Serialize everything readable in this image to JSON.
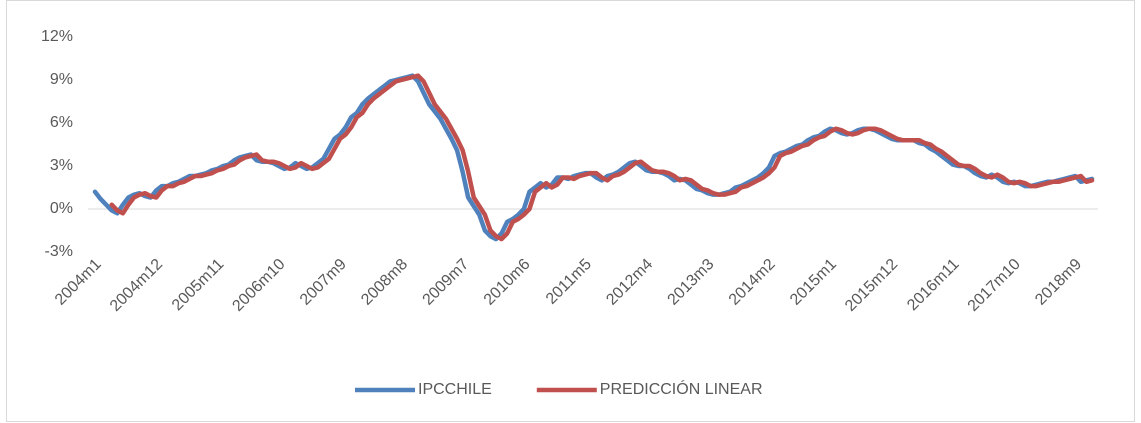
{
  "chart_data": {
    "type": "line",
    "categories": [
      "2004m1",
      null,
      null,
      null,
      null,
      null,
      null,
      null,
      null,
      null,
      null,
      "2004m12",
      null,
      null,
      null,
      null,
      null,
      null,
      null,
      null,
      null,
      null,
      "2005m11",
      null,
      null,
      null,
      null,
      null,
      null,
      null,
      null,
      null,
      null,
      "2006m10",
      null,
      null,
      null,
      null,
      null,
      null,
      null,
      null,
      null,
      null,
      "2007m9",
      null,
      null,
      null,
      null,
      null,
      null,
      null,
      null,
      null,
      null,
      "2008m8",
      null,
      null,
      null,
      null,
      null,
      null,
      null,
      null,
      null,
      null,
      "2009m7",
      null,
      null,
      null,
      null,
      null,
      null,
      null,
      null,
      null,
      null,
      "2010m6",
      null,
      null,
      null,
      null,
      null,
      null,
      null,
      null,
      null,
      null,
      "2011m5",
      null,
      null,
      null,
      null,
      null,
      null,
      null,
      null,
      null,
      null,
      "2012m4",
      null,
      null,
      null,
      null,
      null,
      null,
      null,
      null,
      null,
      null,
      "2013m3",
      null,
      null,
      null,
      null,
      null,
      null,
      null,
      null,
      null,
      null,
      "2014m2",
      null,
      null,
      null,
      null,
      null,
      null,
      null,
      null,
      null,
      null,
      "2015m1",
      null,
      null,
      null,
      null,
      null,
      null,
      null,
      null,
      null,
      null,
      "2015m12",
      null,
      null,
      null,
      null,
      null,
      null,
      null,
      null,
      null,
      null,
      "2016m11",
      null,
      null,
      null,
      null,
      null,
      null,
      null,
      null,
      null,
      null,
      "2017m10",
      null,
      null,
      null,
      null,
      null,
      null,
      null,
      null,
      null,
      null,
      "2018m9",
      null,
      null,
      null
    ],
    "series": [
      {
        "name": "IPCCHILE",
        "color": "#4f81bd",
        "values": [
          1.2,
          0.7,
          0.3,
          -0.1,
          -0.3,
          0.3,
          0.8,
          1.0,
          1.1,
          0.9,
          0.8,
          1.3,
          1.6,
          1.6,
          1.8,
          1.9,
          2.1,
          2.3,
          2.3,
          2.4,
          2.5,
          2.7,
          2.8,
          3.0,
          3.1,
          3.4,
          3.6,
          3.7,
          3.8,
          3.4,
          3.3,
          3.3,
          3.2,
          3.0,
          2.8,
          2.9,
          3.2,
          3.0,
          2.8,
          2.9,
          3.2,
          3.5,
          4.2,
          4.9,
          5.2,
          5.7,
          6.4,
          6.7,
          7.3,
          7.7,
          8.0,
          8.3,
          8.6,
          8.9,
          9.0,
          9.1,
          9.2,
          9.3,
          8.9,
          8.1,
          7.3,
          6.8,
          6.3,
          5.6,
          4.9,
          4.1,
          2.6,
          0.8,
          0.2,
          -0.4,
          -1.5,
          -1.9,
          -2.1,
          -1.7,
          -0.9,
          -0.7,
          -0.4,
          0.0,
          1.2,
          1.5,
          1.8,
          1.5,
          1.7,
          2.2,
          2.2,
          2.1,
          2.3,
          2.4,
          2.5,
          2.5,
          2.2,
          2.0,
          2.3,
          2.4,
          2.6,
          2.9,
          3.2,
          3.3,
          3.0,
          2.7,
          2.6,
          2.6,
          2.5,
          2.3,
          2.0,
          2.1,
          2.0,
          1.7,
          1.4,
          1.3,
          1.1,
          1.0,
          1.0,
          1.1,
          1.2,
          1.5,
          1.6,
          1.8,
          2.0,
          2.2,
          2.5,
          2.9,
          3.7,
          3.9,
          4.0,
          4.2,
          4.4,
          4.5,
          4.8,
          5.0,
          5.1,
          5.4,
          5.6,
          5.5,
          5.3,
          5.2,
          5.3,
          5.5,
          5.6,
          5.6,
          5.5,
          5.3,
          5.1,
          4.9,
          4.8,
          4.8,
          4.8,
          4.8,
          4.6,
          4.5,
          4.2,
          4.0,
          3.7,
          3.4,
          3.1,
          3.0,
          3.0,
          2.8,
          2.5,
          2.3,
          2.2,
          2.4,
          2.2,
          1.9,
          1.8,
          1.9,
          1.8,
          1.6,
          1.6,
          1.7,
          1.8,
          1.9,
          1.9,
          2.0,
          2.1,
          2.2,
          2.3,
          1.9,
          2.0,
          2.1
        ]
      },
      {
        "name": "PREDICCIÓN LINEAR",
        "color": "#c0504d",
        "values": [
          null,
          null,
          null,
          0.3,
          -0.1,
          -0.3,
          0.3,
          0.8,
          1.0,
          1.1,
          0.9,
          0.8,
          1.3,
          1.6,
          1.6,
          1.8,
          1.9,
          2.1,
          2.3,
          2.3,
          2.4,
          2.5,
          2.7,
          2.8,
          3.0,
          3.1,
          3.4,
          3.6,
          3.7,
          3.8,
          3.4,
          3.3,
          3.3,
          3.2,
          3.0,
          2.8,
          2.9,
          3.2,
          3.0,
          2.8,
          2.9,
          3.2,
          3.5,
          4.2,
          4.9,
          5.2,
          5.7,
          6.4,
          6.7,
          7.3,
          7.7,
          8.0,
          8.3,
          8.6,
          8.9,
          9.0,
          9.1,
          9.2,
          9.3,
          8.9,
          8.1,
          7.3,
          6.8,
          6.3,
          5.6,
          4.9,
          4.1,
          2.6,
          0.8,
          0.2,
          -0.4,
          -1.5,
          -1.9,
          -2.1,
          -1.7,
          -0.9,
          -0.7,
          -0.4,
          0.0,
          1.2,
          1.5,
          1.8,
          1.5,
          1.7,
          2.2,
          2.2,
          2.1,
          2.3,
          2.4,
          2.5,
          2.5,
          2.2,
          2.0,
          2.3,
          2.4,
          2.6,
          2.9,
          3.2,
          3.3,
          3.0,
          2.7,
          2.6,
          2.6,
          2.5,
          2.3,
          2.0,
          2.1,
          2.0,
          1.7,
          1.4,
          1.3,
          1.1,
          1.0,
          1.0,
          1.1,
          1.2,
          1.5,
          1.6,
          1.8,
          2.0,
          2.2,
          2.5,
          2.9,
          3.7,
          3.9,
          4.0,
          4.2,
          4.4,
          4.5,
          4.8,
          5.0,
          5.1,
          5.4,
          5.6,
          5.5,
          5.3,
          5.2,
          5.3,
          5.5,
          5.6,
          5.6,
          5.5,
          5.3,
          5.1,
          4.9,
          4.8,
          4.8,
          4.8,
          4.8,
          4.6,
          4.5,
          4.2,
          4.0,
          3.7,
          3.4,
          3.1,
          3.0,
          3.0,
          2.8,
          2.5,
          2.3,
          2.2,
          2.4,
          2.2,
          1.9,
          1.8,
          1.9,
          1.8,
          1.6,
          1.6,
          1.7,
          1.8,
          1.9,
          1.9,
          2.0,
          2.1,
          2.2,
          2.3,
          1.9,
          2.0
        ]
      }
    ],
    "ylim": [
      -3,
      12
    ],
    "yticks": [
      {
        "value": -3,
        "label": "-3%"
      },
      {
        "value": 0,
        "label": "0%"
      },
      {
        "value": 3,
        "label": "3%"
      },
      {
        "value": 6,
        "label": "6%"
      },
      {
        "value": 9,
        "label": "9%"
      },
      {
        "value": 12,
        "label": "12%"
      }
    ],
    "grid": false,
    "legend": "bottom"
  }
}
